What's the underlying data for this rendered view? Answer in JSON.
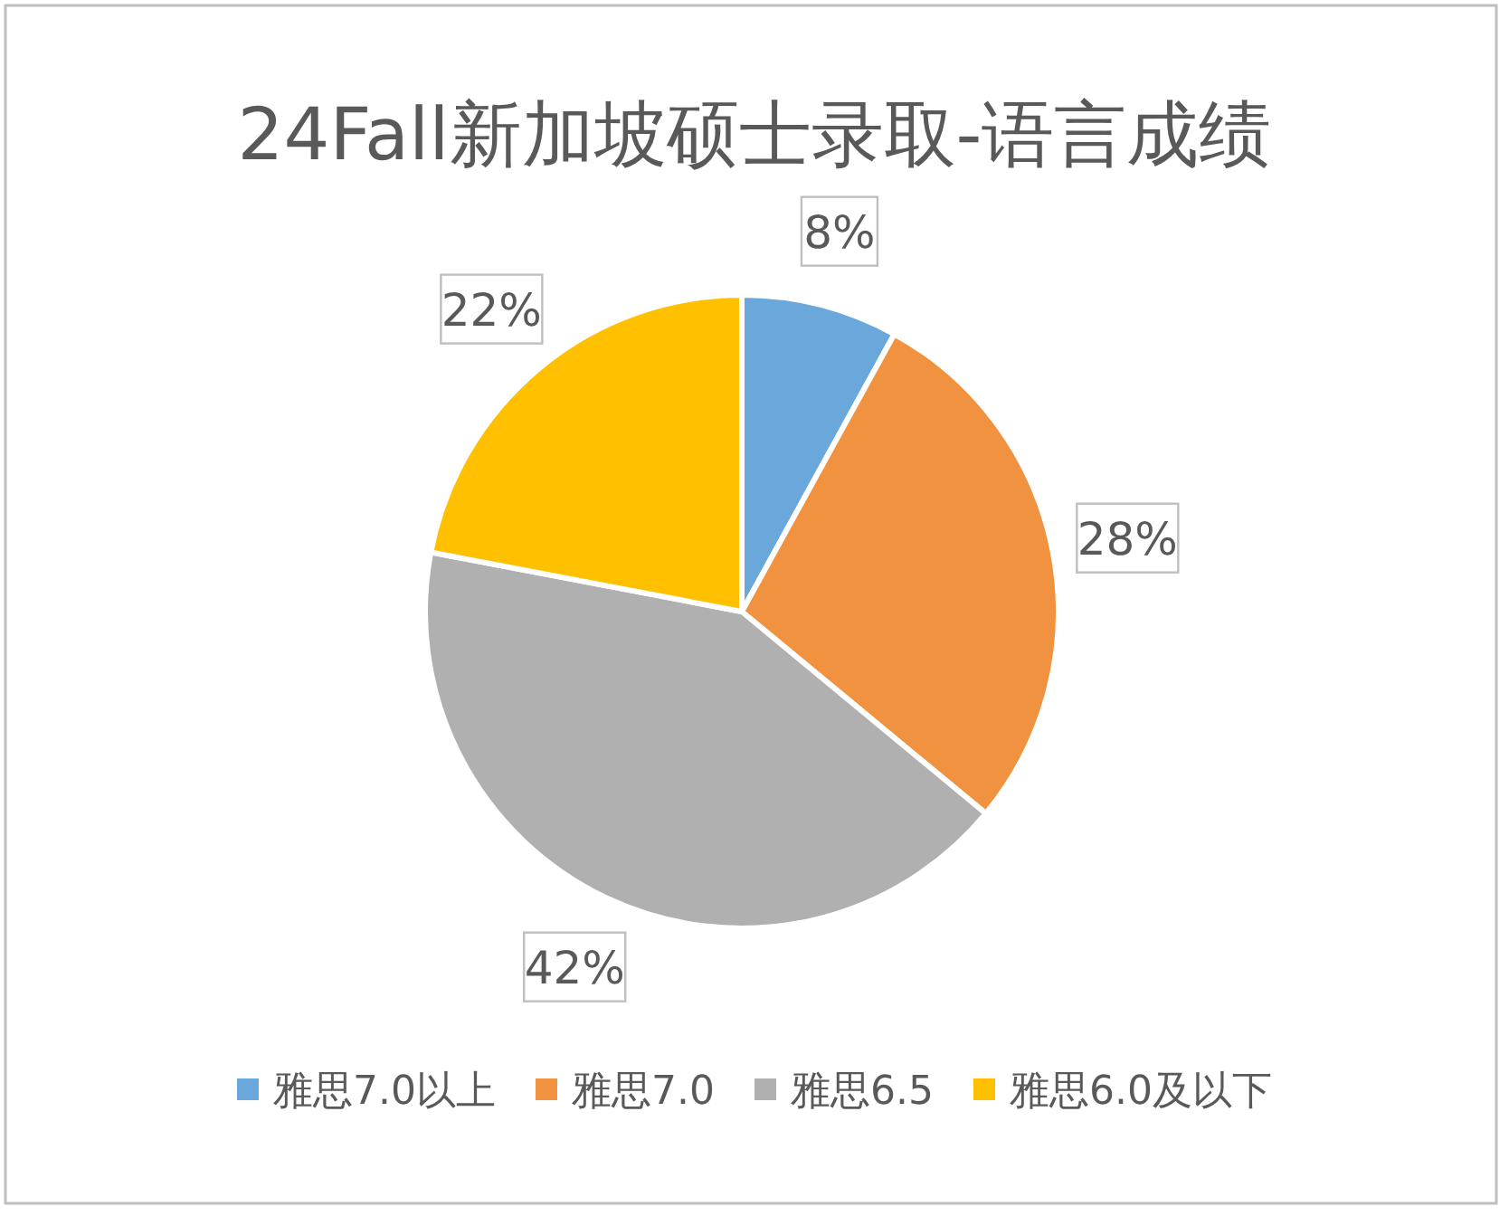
{
  "chart_data": {
    "type": "pie",
    "title": "24Fall新加坡硕士录取-语言成绩",
    "categories": [
      "雅思7.0以上",
      "雅思7.0",
      "雅思6.5",
      "雅思6.0及以下"
    ],
    "values": [
      8,
      28,
      42,
      22
    ],
    "colors": [
      "#6aa8dc",
      "#f0923f",
      "#b0b0b0",
      "#ffc000"
    ],
    "value_labels": [
      "8%",
      "28%",
      "42%",
      "22%"
    ],
    "legend": "bottom"
  }
}
